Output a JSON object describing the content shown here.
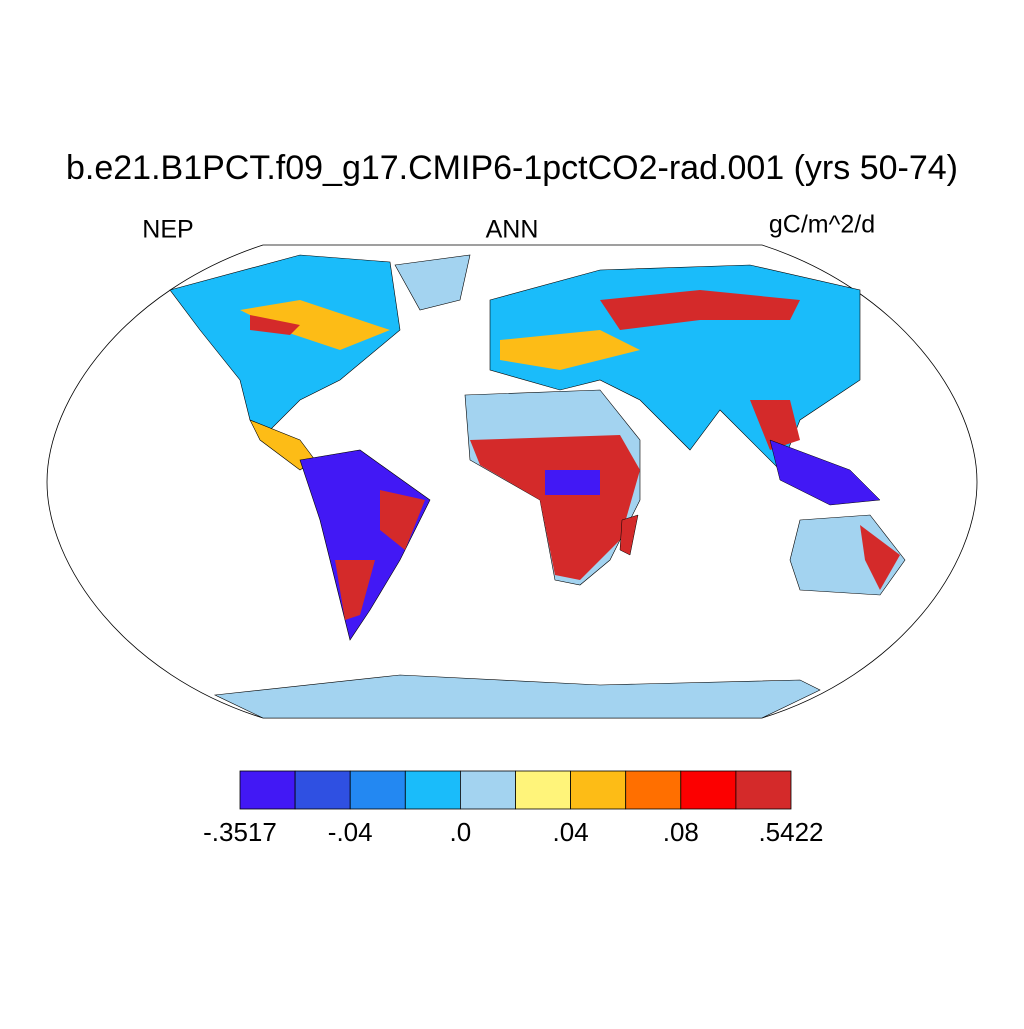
{
  "chart_data": {
    "type": "map",
    "title": "b.e21.B1PCT.f09_g17.CMIP6-1pctCO2-rad.001 (yrs 50-74)",
    "left_label": "NEP",
    "center_label": "ANN",
    "right_label": "gC/m^2/d",
    "colorbar": {
      "colors": [
        "#4218f5",
        "#2f50e2",
        "#2388f2",
        "#1abcfa",
        "#a3d3f0",
        "#fff47a",
        "#fdbc16",
        "#ff6f00",
        "#fc0000",
        "#d42a2a"
      ],
      "ticks": [
        {
          "value": -0.3517,
          "label": "-.3517"
        },
        {
          "value": -0.04,
          "label": "-.04"
        },
        {
          "value": 0,
          "label": ".0"
        },
        {
          "value": 0.04,
          "label": ".04"
        },
        {
          "value": 0.08,
          "label": ".08"
        },
        {
          "value": 0.5422,
          "label": ".5422"
        }
      ]
    }
  }
}
